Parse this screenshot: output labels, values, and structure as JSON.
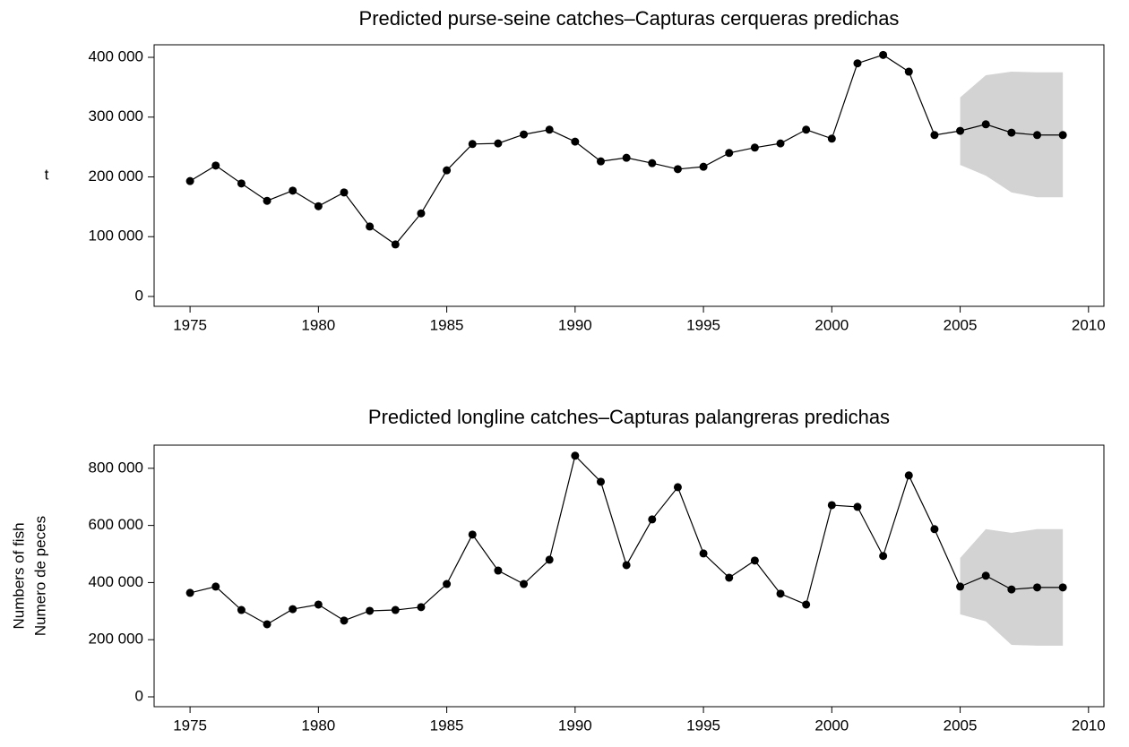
{
  "chart_data": [
    {
      "type": "line",
      "title": "Predicted purse-seine catches–Capturas cerqueras predichas",
      "ylabel": [
        "t"
      ],
      "x": [
        1975,
        1976,
        1977,
        1978,
        1979,
        1980,
        1981,
        1982,
        1983,
        1984,
        1985,
        1986,
        1987,
        1988,
        1989,
        1990,
        1991,
        1992,
        1993,
        1994,
        1995,
        1996,
        1997,
        1998,
        1999,
        2000,
        2001,
        2002,
        2003,
        2004,
        2005,
        2006,
        2007,
        2008,
        2009
      ],
      "series": [
        {
          "color": "#000000",
          "values": [
            193000,
            219000,
            189000,
            160000,
            177000,
            151000,
            174000,
            117000,
            87000,
            139000,
            211000,
            255000,
            256000,
            271000,
            279000,
            259000,
            226000,
            232000,
            223000,
            213000,
            217000,
            240000,
            249000,
            256000,
            279000,
            264000,
            390000,
            404000,
            376000,
            270000,
            277000,
            288000,
            274000,
            270000,
            270000
          ]
        }
      ],
      "band": {
        "color": "#d3d3d3",
        "x": [
          2005,
          2006,
          2007,
          2008,
          2009
        ],
        "upper": [
          333000,
          370000,
          376000,
          375000,
          375000
        ],
        "lower": [
          220000,
          202000,
          174000,
          166000,
          166000
        ]
      },
      "xlim": [
        1973.6,
        2010.6
      ],
      "xticks": [
        1975,
        1980,
        1985,
        1990,
        1995,
        2000,
        2005,
        2010
      ],
      "ylim": [
        -16500,
        421000
      ],
      "yticks": [
        0,
        {
          "value": 100000,
          "label": "100 000"
        },
        {
          "value": 200000,
          "label": "200 000"
        },
        {
          "value": 300000,
          "label": "300 000"
        },
        {
          "value": 400000,
          "label": "400 000"
        }
      ]
    },
    {
      "type": "line",
      "title": "Predicted longline catches–Capturas palangreras predichas",
      "ylabel": [
        "Numbers of fish",
        "Numero de peces"
      ],
      "x": [
        1975,
        1976,
        1977,
        1978,
        1979,
        1980,
        1981,
        1982,
        1983,
        1984,
        1985,
        1986,
        1987,
        1988,
        1989,
        1990,
        1991,
        1992,
        1993,
        1994,
        1995,
        1996,
        1997,
        1998,
        1999,
        2000,
        2001,
        2002,
        2003,
        2004,
        2005,
        2006,
        2007,
        2008,
        2009
      ],
      "series": [
        {
          "color": "#000000",
          "values": [
            364000,
            386000,
            304000,
            254000,
            307000,
            323000,
            267000,
            301000,
            304000,
            314000,
            395000,
            568000,
            442000,
            395000,
            480000,
            844000,
            753000,
            461000,
            621000,
            734000,
            502000,
            417000,
            477000,
            361000,
            323000,
            671000,
            665000,
            493000,
            775000,
            587000,
            386000,
            424000,
            376000,
            383000,
            383000
          ]
        }
      ],
      "band": {
        "color": "#d3d3d3",
        "x": [
          2005,
          2006,
          2007,
          2008,
          2009
        ],
        "upper": [
          486000,
          587000,
          574000,
          587000,
          587000
        ],
        "lower": [
          289000,
          264000,
          182000,
          179000,
          179000
        ]
      },
      "xlim": [
        1973.6,
        2010.6
      ],
      "xticks": [
        1975,
        1980,
        1985,
        1990,
        1995,
        2000,
        2005,
        2010
      ],
      "ylim": [
        -34500,
        881000
      ],
      "yticks": [
        0,
        {
          "value": 200000,
          "label": "200 000"
        },
        {
          "value": 400000,
          "label": "400 000"
        },
        {
          "value": 600000,
          "label": "600 000"
        },
        {
          "value": 800000,
          "label": "800 000"
        }
      ]
    }
  ]
}
